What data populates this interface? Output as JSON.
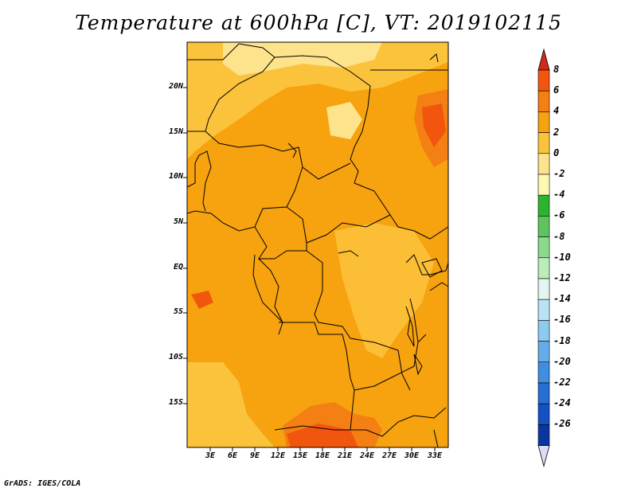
{
  "title": "Temperature at 600hPa [C], VT: 2019102115",
  "credit": "GrADS: IGES/COLA",
  "map": {
    "variable": "Temperature at 600hPa",
    "units": "C",
    "valid_time": "2019102115",
    "lat_labels": [
      "20N",
      "15N",
      "10N",
      "5N",
      "EQ",
      "5S",
      "10S",
      "15S"
    ],
    "lon_labels": [
      "3E",
      "6E",
      "9E",
      "12E",
      "15E",
      "18E",
      "21E",
      "24E",
      "27E",
      "30E",
      "33E"
    ]
  },
  "colorbar": {
    "levels": [
      "8",
      "6",
      "4",
      "2",
      "0",
      "-2",
      "-4",
      "-6",
      "-8",
      "-10",
      "-12",
      "-14",
      "-16",
      "-18",
      "-20",
      "-22",
      "-24",
      "-26"
    ],
    "colors": [
      "#e8300c",
      "#f2560e",
      "#f47f12",
      "#f7a20f",
      "#fbc33c",
      "#fde38b",
      "#fef8b4",
      "#2db42d",
      "#5ec55e",
      "#8bd98b",
      "#bcebbc",
      "#e1f5f1",
      "#b9e3f5",
      "#8ccaf0",
      "#66aceb",
      "#3f8ee0",
      "#256ed4",
      "#1551c2",
      "#0a369f",
      "#061c72"
    ],
    "top_arrow_color": "#d22a18",
    "bottom_arrow_color": "#dcdcf5"
  },
  "colors": {
    "background_warm": "#f7a20f",
    "moderate": "#fbc33c",
    "cool": "#fde38b",
    "hot": "#f2560e",
    "borders": "#000000"
  }
}
